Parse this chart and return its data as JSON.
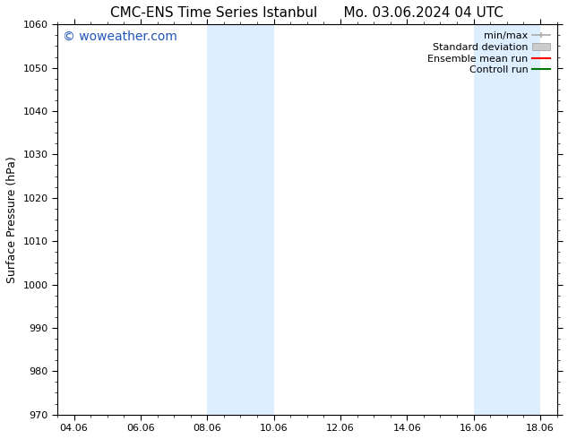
{
  "title_left": "CMC-ENS Time Series Istanbul",
  "title_right": "Mo. 03.06.2024 04 UTC",
  "ylabel": "Surface Pressure (hPa)",
  "ylim": [
    970,
    1060
  ],
  "yticks": [
    970,
    980,
    990,
    1000,
    1010,
    1020,
    1030,
    1040,
    1050,
    1060
  ],
  "xlim": [
    -0.5,
    14.5
  ],
  "xtick_labels": [
    "04.06",
    "06.06",
    "08.06",
    "10.06",
    "12.06",
    "14.06",
    "16.06",
    "18.06"
  ],
  "xtick_positions": [
    0,
    2,
    4,
    6,
    8,
    10,
    12,
    14
  ],
  "shaded_bands": [
    {
      "x_start": 4,
      "x_end": 6
    },
    {
      "x_start": 12,
      "x_end": 14
    }
  ],
  "shaded_color": "#ddeeff",
  "watermark_text": "© woweather.com",
  "watermark_color": "#2255bb",
  "legend_entries": [
    {
      "label": "min/max",
      "color": "#aaaaaa",
      "style": "minmax"
    },
    {
      "label": "Standard deviation",
      "color": "#cccccc",
      "style": "stddev"
    },
    {
      "label": "Ensemble mean run",
      "color": "#ff0000",
      "style": "line"
    },
    {
      "label": "Controll run",
      "color": "#007700",
      "style": "line"
    }
  ],
  "background_color": "#ffffff",
  "title_fontsize": 11,
  "axis_label_fontsize": 9,
  "tick_fontsize": 8,
  "legend_fontsize": 8,
  "watermark_fontsize": 10
}
